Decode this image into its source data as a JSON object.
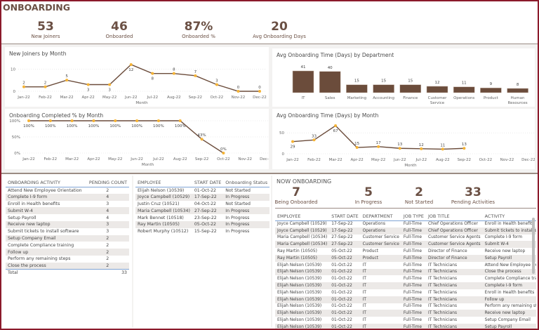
{
  "header": {
    "title": "ONBOARDING",
    "kpis": [
      {
        "value": "53",
        "label": "New Joiners"
      },
      {
        "value": "46",
        "label": "Onboarded"
      },
      {
        "value": "87%",
        "label": "Onboarded %"
      },
      {
        "value": "20",
        "label": "Avg Onboarding Days"
      }
    ]
  },
  "colors": {
    "frame": "#8b1a2b",
    "line": "#6b4c3b",
    "marker": "#f5b335",
    "bar": "#6b4c3b",
    "text": "#6b5044"
  },
  "chart_data": [
    {
      "type": "line",
      "title": "New Joiners by Month",
      "xlabel": "Month",
      "ylabel": "",
      "categories": [
        "Jan-22",
        "Feb-22",
        "Mar-22",
        "Apr-22",
        "May-22",
        "Jun-22",
        "Jul-22",
        "Aug-22",
        "Sep-22",
        "Oct-22",
        "Nov-22",
        "Dec-22"
      ],
      "values": [
        2,
        2,
        5,
        3,
        3,
        12,
        8,
        8,
        7,
        3,
        0,
        0
      ],
      "yticks": [
        "0",
        "10"
      ],
      "ylim": [
        0,
        12
      ],
      "grid": true
    },
    {
      "type": "line",
      "title": "Onboarding Completed % by Month",
      "xlabel": "Month",
      "ylabel": "",
      "categories": [
        "Jan-22",
        "Feb-22",
        "Mar-22",
        "Apr-22",
        "May-22",
        "Jun-22",
        "Jul-22",
        "Aug-22",
        "Sep-22",
        "Oct-22",
        "Nov-22",
        "Dec-22"
      ],
      "values": [
        100,
        100,
        100,
        100,
        100,
        100,
        100,
        100,
        43,
        0,
        null,
        null
      ],
      "labels": [
        "100%",
        "100%",
        "100%",
        "100%",
        "100%",
        "100%",
        "100%",
        "100%",
        "43%",
        "0%"
      ],
      "yticks": [
        "0%",
        "50%",
        "100%"
      ],
      "ylim": [
        0,
        100
      ],
      "grid": true
    },
    {
      "type": "bar",
      "title": "Avg Onboarding Time (Days) by Department",
      "categories": [
        "IT",
        "Sales",
        "Marketing",
        "Accounting",
        "Finance",
        "Customer Service",
        "Operations",
        "Product",
        "Human Resources"
      ],
      "values": [
        41,
        40,
        15,
        15,
        15,
        12,
        11,
        9,
        8
      ]
    },
    {
      "type": "line",
      "title": "Avg Onboarding Time (Days) by Month",
      "xlabel": "Month",
      "ylabel": "",
      "categories": [
        "Jan-22",
        "Feb-22",
        "Mar-22",
        "Apr-22",
        "May-22",
        "Jun-22",
        "Jul-22",
        "Aug-22",
        "Sep-22",
        "Oct-22",
        "Nov-22",
        "Dec-22"
      ],
      "values": [
        29,
        33,
        67,
        15,
        17,
        13,
        12,
        11,
        13,
        null,
        null,
        null
      ],
      "yticks": [
        "0",
        "50"
      ],
      "ylim": [
        0,
        67
      ],
      "grid": true
    }
  ],
  "activity": {
    "headers": [
      "ONBOARDING ACTIVITY",
      "PENDING COUNT"
    ],
    "rows": [
      [
        "Attend New Employee Orientation",
        "2"
      ],
      [
        "Complete I-9 form",
        "4"
      ],
      [
        "Enroll in Health benefits",
        "3"
      ],
      [
        "Submit W-4",
        "4"
      ],
      [
        "Setup Payroll",
        "4"
      ],
      [
        "Receive new laptop",
        "3"
      ],
      [
        "Submit tickets to install software",
        "3"
      ],
      [
        "Setup Company Email",
        "2"
      ],
      [
        "Complete Compliance training",
        "2"
      ],
      [
        "Follow up",
        "2"
      ],
      [
        "Perform any remaining steps",
        "2"
      ],
      [
        "Close the process",
        "2"
      ]
    ],
    "total_label": "Total",
    "total": "33"
  },
  "employees": {
    "headers": [
      "EMPLOYEE",
      "START DATE",
      "Onboarding Status"
    ],
    "rows": [
      [
        "Elijah Nelson (10539)",
        "01-Oct-22",
        "Not Started"
      ],
      [
        "Joyce Campbell (10529)",
        "17-Sep-22",
        "In Progress"
      ],
      [
        "Justin Cruz (10521)",
        "04-Oct-22",
        "Not Started"
      ],
      [
        "Maria Campbell (10534)",
        "27-Sep-22",
        "In Progress"
      ],
      [
        "Mark Bennet (10518)",
        "23-Sep-22",
        "In Progress"
      ],
      [
        "Ray Martin (10505)",
        "05-Oct-22",
        "In Progress"
      ],
      [
        "Robert Murphy (10512)",
        "15-Sep-22",
        "In Progress"
      ]
    ]
  },
  "now": {
    "title": "NOW ONBOARDING",
    "kpis": [
      {
        "value": "7",
        "label": "Being Onboarded"
      },
      {
        "value": "5",
        "label": "In Progress"
      },
      {
        "value": "2",
        "label": "Not Started"
      },
      {
        "value": "33",
        "label": "Pending Activities"
      }
    ],
    "headers": [
      "EMPLOYEE",
      "START DATE",
      "DEPARTMENT",
      "JOB TYPE",
      "JOB TITLE",
      "ACTIVITY"
    ],
    "rows": [
      [
        "Joyce Campbell (10529)",
        "17-Sep-22",
        "Operations",
        "Full-Time",
        "Chief Operations Officer",
        "Enroll in Health benefits"
      ],
      [
        "Joyce Campbell (10529)",
        "17-Sep-22",
        "Operations",
        "Full-Time",
        "Chief Operations Officer",
        "Submit tickets to install software"
      ],
      [
        "Maria Campbell (10534)",
        "27-Sep-22",
        "Customer Service",
        "Full-Time",
        "Customer Service Agents",
        "Complete I-9 form"
      ],
      [
        "Maria Campbell (10534)",
        "27-Sep-22",
        "Customer Service",
        "Full-Time",
        "Customer Service Agents",
        "Submit W-4"
      ],
      [
        "Ray Martin (10505)",
        "05-Oct-22",
        "Product",
        "Full-Time",
        "Director of Finance",
        "Receive new laptop"
      ],
      [
        "Ray Martin (10505)",
        "05-Oct-22",
        "Product",
        "Full-Time",
        "Director of Finance",
        "Setup Payroll"
      ],
      [
        "Elijah Nelson (10539)",
        "01-Oct-22",
        "IT",
        "Full-Time",
        "IT Technicians",
        "Attend New Employee Orientation"
      ],
      [
        "Elijah Nelson (10539)",
        "01-Oct-22",
        "IT",
        "Full-Time",
        "IT Technicians",
        "Close the process"
      ],
      [
        "Elijah Nelson (10539)",
        "01-Oct-22",
        "IT",
        "Full-Time",
        "IT Technicians",
        "Complete Compliance training"
      ],
      [
        "Elijah Nelson (10539)",
        "01-Oct-22",
        "IT",
        "Full-Time",
        "IT Technicians",
        "Complete I-9 form"
      ],
      [
        "Elijah Nelson (10539)",
        "01-Oct-22",
        "IT",
        "Full-Time",
        "IT Technicians",
        "Enroll in Health benefits"
      ],
      [
        "Elijah Nelson (10539)",
        "01-Oct-22",
        "IT",
        "Full-Time",
        "IT Technicians",
        "Follow up"
      ],
      [
        "Elijah Nelson (10539)",
        "01-Oct-22",
        "IT",
        "Full-Time",
        "IT Technicians",
        "Perform any remaining steps"
      ],
      [
        "Elijah Nelson (10539)",
        "01-Oct-22",
        "IT",
        "Full-Time",
        "IT Technicians",
        "Receive new laptop"
      ],
      [
        "Elijah Nelson (10539)",
        "01-Oct-22",
        "IT",
        "Full-Time",
        "IT Technicians",
        "Setup Company Email"
      ],
      [
        "Elijah Nelson (10539)",
        "01-Oct-22",
        "IT",
        "Full-Time",
        "IT Technicians",
        "Setup Payroll"
      ]
    ]
  }
}
